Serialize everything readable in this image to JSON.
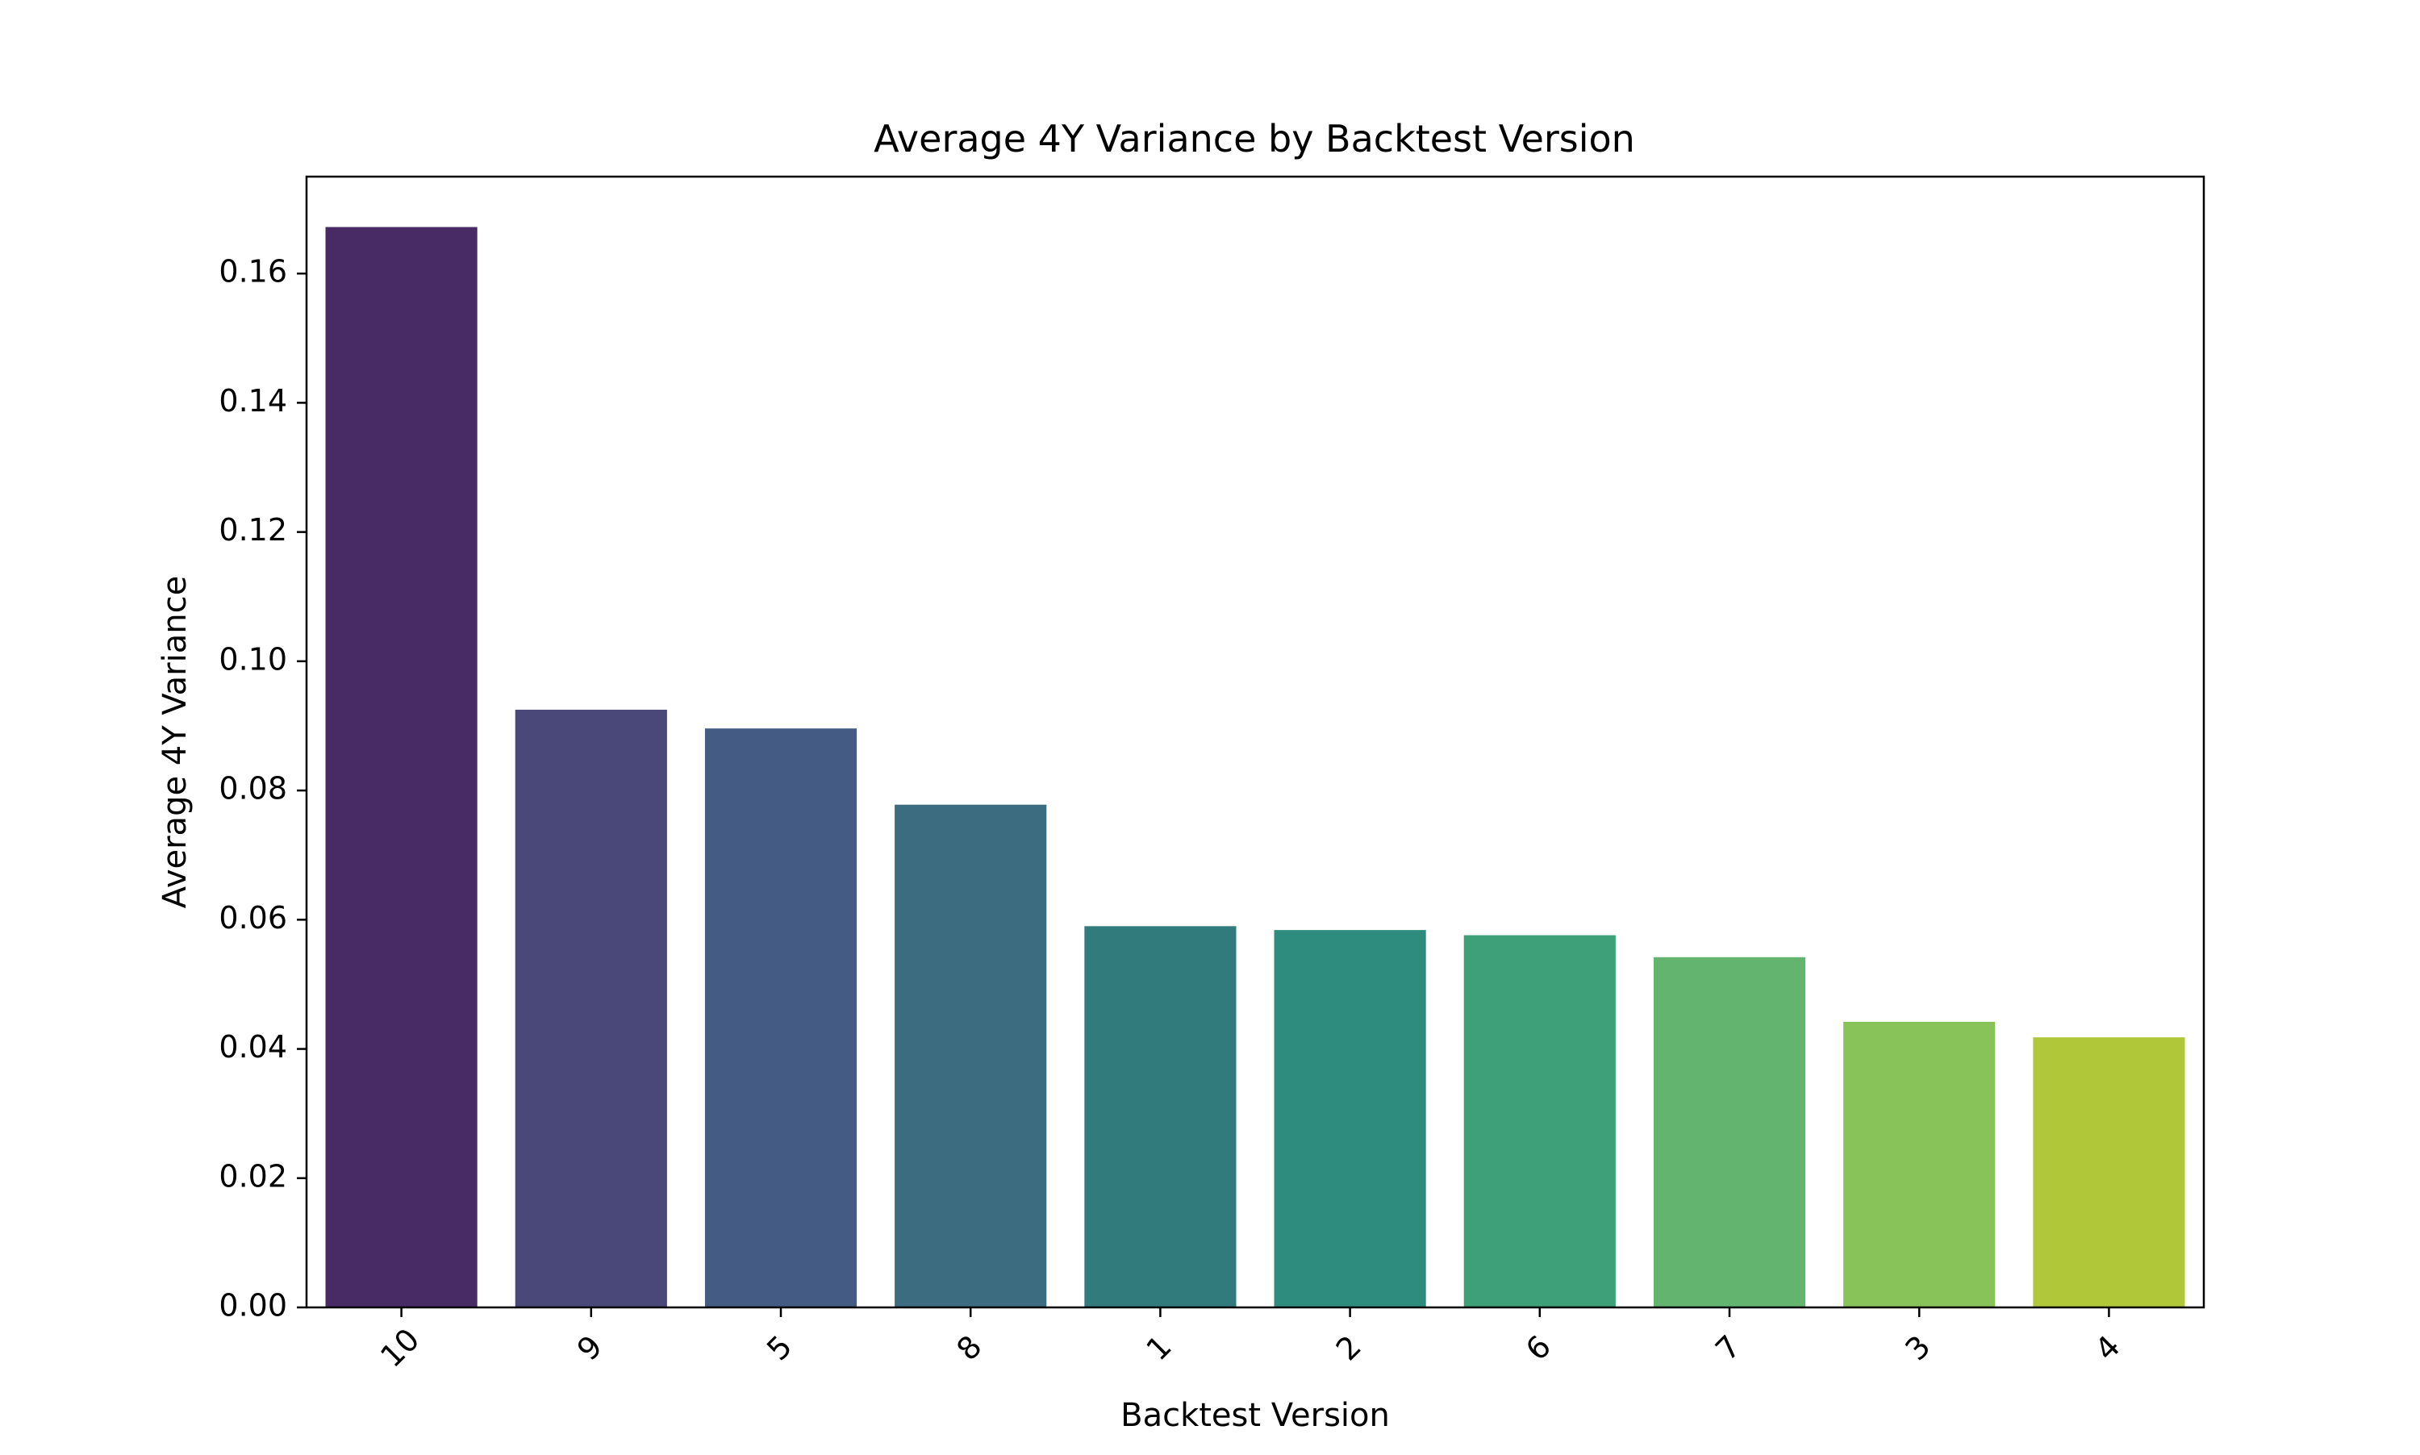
{
  "chart_data": {
    "type": "bar",
    "title": "Average 4Y Variance by Backtest Version",
    "xlabel": "Backtest Version",
    "ylabel": "Average 4Y Variance",
    "categories": [
      "10",
      "9",
      "5",
      "8",
      "1",
      "2",
      "6",
      "7",
      "3",
      "4"
    ],
    "values": [
      0.1672,
      0.0925,
      0.0896,
      0.0778,
      0.059,
      0.0584,
      0.0576,
      0.0542,
      0.0442,
      0.0418
    ],
    "colors": [
      "#482a65",
      "#4a4879",
      "#445b84",
      "#3b6c7f",
      "#317b7d",
      "#2e8c7e",
      "#3da078",
      "#62b46f",
      "#88c35a",
      "#b0c73a"
    ],
    "ylim": [
      0,
      0.175
    ],
    "yticks": [
      0.0,
      0.02,
      0.04,
      0.06,
      0.08,
      0.1,
      0.12,
      0.14,
      0.16
    ],
    "ytick_labels": [
      "0.00",
      "0.02",
      "0.04",
      "0.06",
      "0.08",
      "0.10",
      "0.12",
      "0.14",
      "0.16"
    ],
    "grid": false,
    "legend": "none",
    "xtick_rotation_deg": -45
  }
}
